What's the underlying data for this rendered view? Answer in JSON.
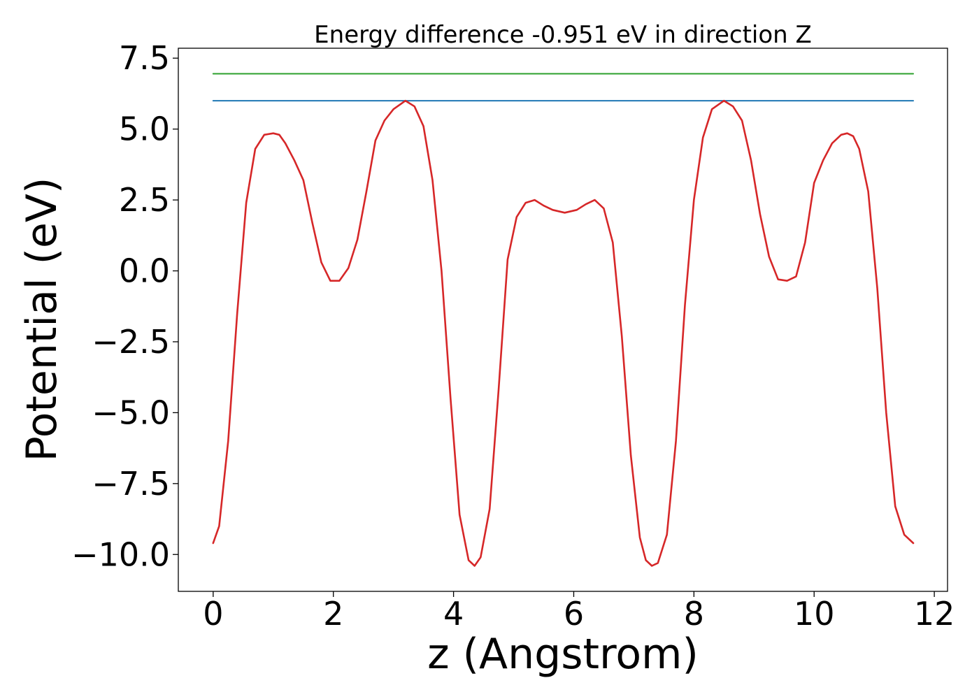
{
  "chart_data": {
    "type": "line",
    "title": "Energy difference -0.951 eV in direction Z",
    "xlabel": "z (Angstrom)",
    "ylabel": "Potential (eV)",
    "xlim": [
      -0.58,
      12.22
    ],
    "ylim": [
      -11.3,
      7.85
    ],
    "x_ticks": [
      0,
      2,
      4,
      6,
      8,
      10,
      12
    ],
    "x_tick_labels": [
      "0",
      "2",
      "4",
      "6",
      "8",
      "10",
      "12"
    ],
    "y_ticks": [
      7.5,
      5.0,
      2.5,
      0.0,
      -2.5,
      -5.0,
      -7.5,
      -10.0
    ],
    "y_tick_labels": [
      "7.5",
      "5.0",
      "2.5",
      "0.0",
      "−2.5",
      "−5.0",
      "−7.5",
      "−10.0"
    ],
    "grid": false,
    "legend": "none",
    "series": [
      {
        "color": "#2ca02c",
        "x": [
          0,
          11.65
        ],
        "y": [
          6.95,
          6.95
        ]
      },
      {
        "color": "#1f77b4",
        "x": [
          0,
          11.65
        ],
        "y": [
          6.0,
          6.0
        ]
      },
      {
        "color": "#d62728",
        "x": [
          0,
          0.1,
          0.25,
          0.4,
          0.55,
          0.7,
          0.85,
          1.0,
          1.1,
          1.2,
          1.35,
          1.5,
          1.65,
          1.8,
          1.95,
          2.1,
          2.25,
          2.4,
          2.55,
          2.7,
          2.85,
          3.0,
          3.2,
          3.35,
          3.5,
          3.65,
          3.8,
          3.95,
          4.1,
          4.25,
          4.35,
          4.45,
          4.6,
          4.75,
          4.9,
          5.05,
          5.2,
          5.35,
          5.5,
          5.65,
          5.85,
          6.05,
          6.2,
          6.35,
          6.5,
          6.65,
          6.8,
          6.95,
          7.1,
          7.2,
          7.3,
          7.4,
          7.55,
          7.7,
          7.85,
          8.0,
          8.15,
          8.3,
          8.5,
          8.65,
          8.8,
          8.95,
          9.1,
          9.25,
          9.4,
          9.55,
          9.7,
          9.85,
          10.0,
          10.15,
          10.3,
          10.45,
          10.55,
          10.65,
          10.75,
          10.9,
          11.05,
          11.2,
          11.35,
          11.5,
          11.65
        ],
        "y": [
          -9.6,
          -9.0,
          -6.0,
          -1.5,
          2.4,
          4.3,
          4.8,
          4.85,
          4.8,
          4.5,
          3.9,
          3.2,
          1.7,
          0.3,
          -0.35,
          -0.35,
          0.1,
          1.1,
          2.8,
          4.6,
          5.3,
          5.7,
          6.0,
          5.8,
          5.1,
          3.2,
          0.0,
          -4.5,
          -8.6,
          -10.2,
          -10.4,
          -10.1,
          -8.4,
          -4.2,
          0.4,
          1.9,
          2.4,
          2.5,
          2.3,
          2.15,
          2.05,
          2.15,
          2.35,
          2.5,
          2.2,
          1.0,
          -2.3,
          -6.5,
          -9.4,
          -10.2,
          -10.4,
          -10.3,
          -9.3,
          -6.0,
          -1.2,
          2.5,
          4.7,
          5.7,
          6.0,
          5.8,
          5.3,
          3.9,
          2.0,
          0.5,
          -0.3,
          -0.35,
          -0.2,
          1.0,
          3.1,
          3.9,
          4.5,
          4.8,
          4.85,
          4.75,
          4.3,
          2.8,
          -0.6,
          -5.0,
          -8.3,
          -9.3,
          -9.6
        ]
      }
    ]
  }
}
